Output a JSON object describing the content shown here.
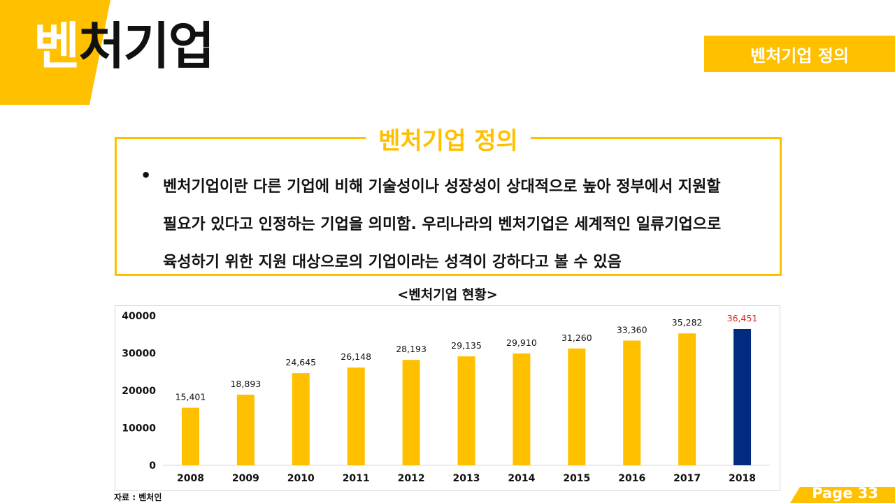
{
  "header": {
    "title_first": "벤",
    "title_rest": "처기업",
    "section_tag": "벤처기업 정의"
  },
  "definition": {
    "title": "벤처기업 정의",
    "bullet": "•",
    "line1": "벤처기업이란 다른 기업에 비해 기술성이나 성장성이 상대적으로 높아 정부에서 지원할",
    "line2": "필요가 있다고 인정하는 기업을 의미함. 우리나라의 벤처기업은 세계적인 일류기업으로",
    "line3": "육성하기 위한 지원 대상으로의 기업이라는 성격이 강하다고 볼 수 있음"
  },
  "chart_title": "<벤처기업 현황>",
  "source": "자료 : 벤처인",
  "page": "Page 33",
  "colors": {
    "accent": "#FFC000",
    "highlight": "#002B7F",
    "highlight_label": "#E02020"
  },
  "chart_data": {
    "type": "bar",
    "title": "<벤처기업 현황>",
    "xlabel": "",
    "ylabel": "",
    "categories": [
      "2008",
      "2009",
      "2010",
      "2011",
      "2012",
      "2013",
      "2014",
      "2015",
      "2016",
      "2017",
      "2018"
    ],
    "values": [
      15401,
      18893,
      24645,
      26148,
      28193,
      29135,
      29910,
      31260,
      33360,
      35282,
      36451
    ],
    "value_labels": [
      "15,401",
      "18,893",
      "24,645",
      "26,148",
      "28,193",
      "29,135",
      "29,910",
      "31,260",
      "33,360",
      "35,282",
      "36,451"
    ],
    "yticks": [
      "0",
      "10000",
      "20000",
      "30000",
      "40000"
    ],
    "ylim": [
      0,
      40000
    ],
    "highlight_index": 10,
    "grid": false
  }
}
